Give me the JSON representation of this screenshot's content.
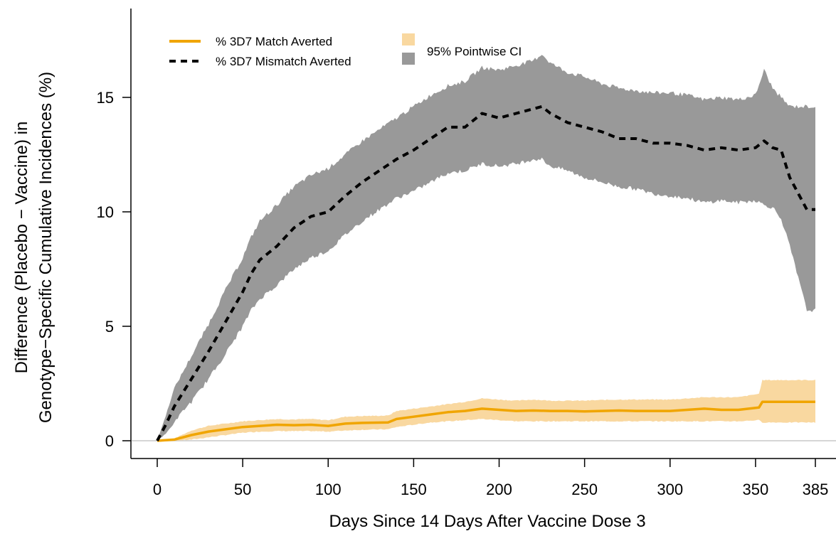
{
  "chart_data": {
    "type": "line",
    "xlabel": "Days Since 14 Days After Vaccine Dose 3",
    "ylabel_line1": "Difference (Placebo − Vaccine) in",
    "ylabel_line2": "Genotype−Specific Cumulative Incidences (%)",
    "xlim": [
      -15,
      390
    ],
    "ylim": [
      -0.8,
      18.8
    ],
    "x_ticks": [
      0,
      50,
      100,
      150,
      200,
      250,
      300,
      350,
      385
    ],
    "x_tick_labels": [
      "0",
      "50",
      "100",
      "150",
      "200",
      "250",
      "300",
      "350",
      "385"
    ],
    "y_ticks": [
      0,
      5,
      10,
      15
    ],
    "y_tick_labels": [
      "0",
      "5",
      "10",
      "15"
    ],
    "zero_line": true,
    "legend": {
      "position": "top-left",
      "entries": [
        "% 3D7 Match Averted",
        "% 3D7 Mismatch Averted"
      ],
      "ci_label": "95% Pointwise CI"
    },
    "colors": {
      "match_line": "#f0a500",
      "match_ci": "#f9d8a0",
      "mismatch_line": "#000000",
      "mismatch_ci": "#999999",
      "zero_line": "#c8c8c8"
    },
    "series": [
      {
        "name": "% 3D7 Match Averted",
        "style": "solid",
        "x": [
          0,
          10,
          20,
          30,
          40,
          50,
          60,
          70,
          80,
          90,
          100,
          110,
          120,
          135,
          140,
          150,
          160,
          170,
          180,
          190,
          200,
          210,
          220,
          230,
          240,
          250,
          260,
          270,
          280,
          290,
          300,
          310,
          320,
          330,
          340,
          352,
          354,
          360,
          370,
          385
        ],
        "y": [
          0,
          0.05,
          0.25,
          0.4,
          0.5,
          0.6,
          0.65,
          0.7,
          0.68,
          0.7,
          0.65,
          0.75,
          0.78,
          0.8,
          0.95,
          1.05,
          1.15,
          1.25,
          1.3,
          1.4,
          1.35,
          1.3,
          1.32,
          1.3,
          1.3,
          1.28,
          1.3,
          1.32,
          1.3,
          1.3,
          1.3,
          1.35,
          1.4,
          1.35,
          1.35,
          1.45,
          1.7,
          1.7,
          1.7,
          1.7
        ],
        "ci_lower": [
          0,
          0,
          0.05,
          0.15,
          0.25,
          0.35,
          0.4,
          0.42,
          0.42,
          0.42,
          0.4,
          0.45,
          0.48,
          0.5,
          0.6,
          0.7,
          0.8,
          0.85,
          0.9,
          0.95,
          0.9,
          0.85,
          0.85,
          0.85,
          0.85,
          0.85,
          0.85,
          0.85,
          0.85,
          0.85,
          0.85,
          0.85,
          0.85,
          0.85,
          0.85,
          0.9,
          0.8,
          0.8,
          0.8,
          0.8
        ],
        "ci_upper": [
          0,
          0.1,
          0.45,
          0.65,
          0.75,
          0.85,
          0.9,
          0.95,
          0.93,
          0.95,
          0.9,
          1.05,
          1.08,
          1.1,
          1.3,
          1.4,
          1.5,
          1.6,
          1.7,
          1.85,
          1.8,
          1.75,
          1.8,
          1.75,
          1.75,
          1.75,
          1.78,
          1.8,
          1.8,
          1.8,
          1.8,
          1.85,
          1.9,
          1.9,
          1.9,
          2.05,
          2.65,
          2.65,
          2.65,
          2.65
        ]
      },
      {
        "name": "% 3D7 Mismatch Averted",
        "style": "dashed",
        "x": [
          0,
          5,
          10,
          15,
          20,
          25,
          30,
          40,
          50,
          55,
          60,
          70,
          80,
          90,
          100,
          110,
          120,
          130,
          140,
          150,
          160,
          170,
          180,
          190,
          200,
          210,
          220,
          225,
          230,
          240,
          250,
          260,
          270,
          280,
          290,
          300,
          310,
          320,
          330,
          340,
          350,
          355,
          360,
          365,
          370,
          380,
          385
        ],
        "y": [
          0,
          0.7,
          1.5,
          2.1,
          2.7,
          3.3,
          3.9,
          5.2,
          6.5,
          7.3,
          7.9,
          8.5,
          9.3,
          9.8,
          10.0,
          10.7,
          11.3,
          11.8,
          12.3,
          12.7,
          13.2,
          13.7,
          13.7,
          14.3,
          14.1,
          14.3,
          14.5,
          14.6,
          14.3,
          13.9,
          13.7,
          13.5,
          13.2,
          13.2,
          13.0,
          13.0,
          12.9,
          12.7,
          12.8,
          12.7,
          12.8,
          13.1,
          12.8,
          12.7,
          11.5,
          10.1,
          10.1
        ],
        "ci_lower": [
          0,
          0.3,
          0.8,
          1.3,
          1.7,
          2.2,
          2.7,
          3.8,
          5.0,
          5.7,
          6.2,
          6.8,
          7.5,
          8.0,
          8.3,
          9.0,
          9.6,
          10.1,
          10.6,
          10.9,
          11.3,
          11.7,
          11.8,
          12.1,
          12.0,
          12.1,
          12.3,
          12.3,
          12.0,
          11.8,
          11.5,
          11.3,
          11.1,
          11.0,
          10.8,
          10.7,
          10.6,
          10.4,
          10.5,
          10.4,
          10.5,
          10.3,
          10.2,
          9.7,
          8.5,
          5.7,
          5.7
        ],
        "ci_upper": [
          0,
          1.1,
          2.3,
          3.0,
          3.7,
          4.4,
          5.1,
          6.6,
          8.0,
          8.9,
          9.6,
          10.3,
          11.1,
          11.6,
          11.9,
          12.5,
          13.1,
          13.6,
          14.1,
          14.6,
          15.1,
          15.5,
          15.7,
          16.3,
          16.2,
          16.4,
          16.6,
          16.9,
          16.5,
          16.1,
          15.9,
          15.6,
          15.4,
          15.3,
          15.2,
          15.2,
          15.1,
          14.9,
          15.0,
          14.9,
          15.1,
          16.2,
          15.4,
          15.0,
          14.6,
          14.6,
          14.6
        ]
      }
    ]
  }
}
